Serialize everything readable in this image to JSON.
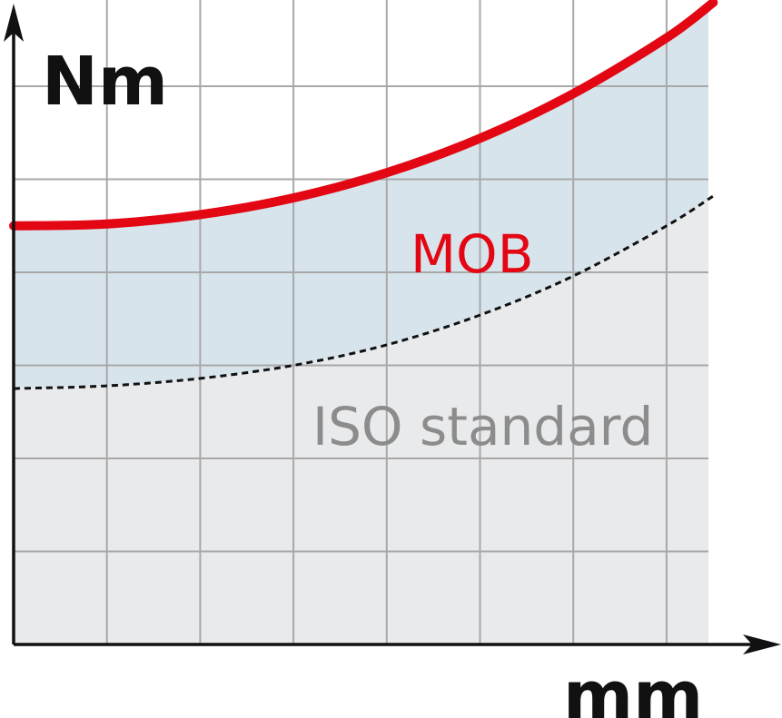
{
  "chart_data": {
    "type": "line",
    "title": "",
    "xlabel": "mm",
    "ylabel": "Nm",
    "grid": true,
    "grid_divisions": {
      "x": 7.5,
      "y": 6
    },
    "axis_ticks": "none",
    "x": [
      0,
      1,
      2,
      3,
      4,
      5,
      6,
      7,
      7.5
    ],
    "series": [
      {
        "name": "MOB",
        "values": [
          4.5,
          4.52,
          4.62,
          4.8,
          5.07,
          5.44,
          5.92,
          6.52,
          6.9
        ],
        "color": "#e30613",
        "style": "solid"
      },
      {
        "name": "ISO standard",
        "values": [
          2.75,
          2.78,
          2.86,
          3.0,
          3.22,
          3.54,
          3.96,
          4.5,
          4.82
        ],
        "color": "#111111",
        "style": "dashed"
      }
    ],
    "colors": {
      "mob_region_fill": "#d8e4ec",
      "iso_region_fill": "#e9eaec",
      "grid_line": "#a8a8a8",
      "axis": "#111111",
      "iso_label": "#8c8c8c"
    }
  }
}
